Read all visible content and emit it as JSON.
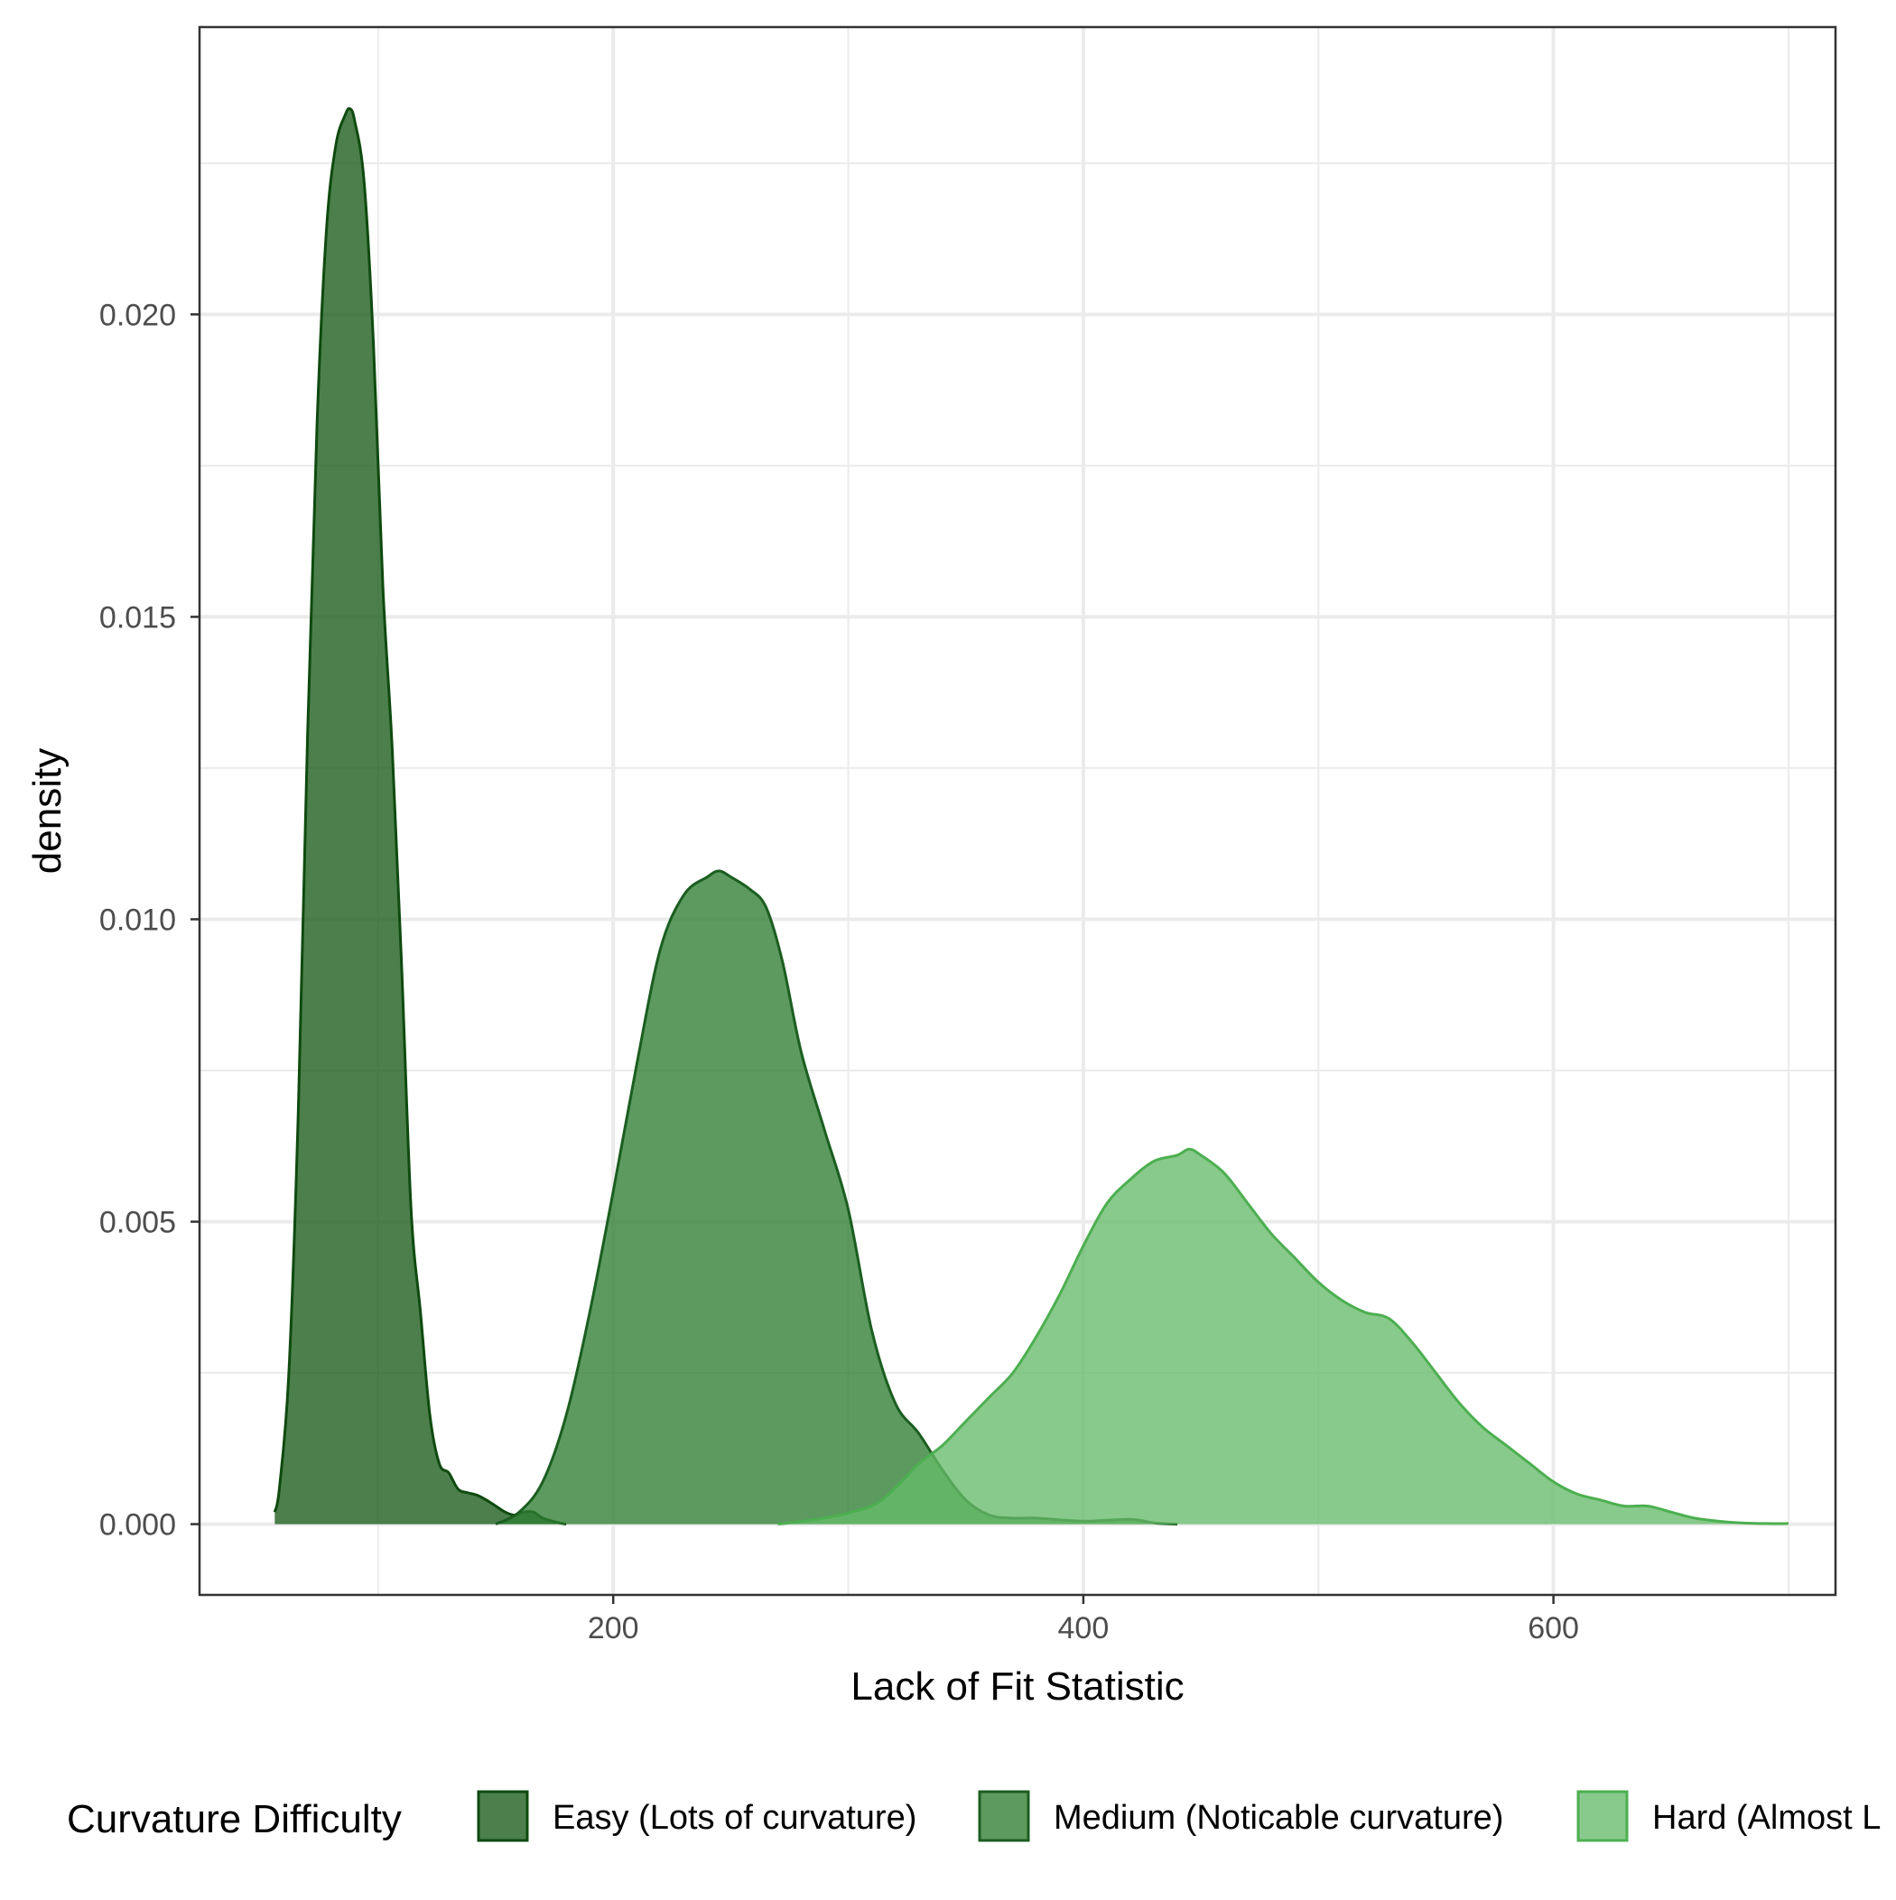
{
  "chart_data": {
    "type": "area",
    "title": "",
    "xlabel": "Lack of Fit Statistic",
    "ylabel": "density",
    "xlim": [
      24,
      720
    ],
    "ylim": [
      -0.00117,
      0.02475
    ],
    "x_ticks": [
      200,
      400,
      600
    ],
    "x_tick_labels": [
      "200",
      "400",
      "600"
    ],
    "y_ticks": [
      0,
      0.005,
      0.01,
      0.015,
      0.02
    ],
    "y_tick_labels": [
      "0.000",
      "0.005",
      "0.010",
      "0.015",
      "0.020"
    ],
    "grid": true,
    "legend": {
      "title": "Curvature Difficulty",
      "position": "bottom"
    },
    "series": [
      {
        "name": "Easy (Lots of curvature)",
        "fill": "#1f5f1f",
        "stroke": "#0f4a0f",
        "opacity": 0.8,
        "x": [
          56,
          58,
          62,
          66,
          70,
          74,
          78,
          82,
          86,
          88,
          90,
          94,
          98,
          102,
          106,
          110,
          114,
          118,
          122,
          126,
          130,
          134,
          138,
          142,
          146,
          150,
          154,
          158,
          162,
          166,
          170,
          176,
          180
        ],
        "y": [
          0.0002,
          0.0006,
          0.0025,
          0.0068,
          0.0131,
          0.0182,
          0.0214,
          0.0228,
          0.0233,
          0.0234,
          0.0232,
          0.0222,
          0.0195,
          0.0155,
          0.0128,
          0.0092,
          0.0052,
          0.0035,
          0.0018,
          0.001,
          0.00085,
          0.00058,
          0.00052,
          0.00048,
          0.0004,
          0.0003,
          0.0002,
          0.00015,
          0.0002,
          0.0002,
          0.0001,
          3e-05,
          0.0
        ]
      },
      {
        "name": "Medium (Noticable curvature)",
        "fill": "#2e7d32",
        "stroke": "#1b5e20",
        "opacity": 0.78,
        "x": [
          150,
          160,
          170,
          180,
          190,
          200,
          210,
          220,
          230,
          240,
          245,
          250,
          258,
          265,
          272,
          280,
          290,
          300,
          310,
          320,
          330,
          340,
          350,
          360,
          370,
          380,
          400,
          420,
          430,
          440
        ],
        "y": [
          0.0,
          0.0002,
          0.0007,
          0.0018,
          0.0035,
          0.0055,
          0.0076,
          0.0095,
          0.0104,
          0.0107,
          0.0108,
          0.0107,
          0.0105,
          0.0102,
          0.0093,
          0.0078,
          0.0065,
          0.0052,
          0.0032,
          0.002,
          0.0015,
          0.0009,
          0.0004,
          0.00015,
          0.0001,
          0.0001,
          5e-05,
          8e-05,
          2e-05,
          0.0
        ]
      },
      {
        "name": "Hard (Almost L",
        "fill": "#66bb6a",
        "stroke": "#4caf50",
        "opacity": 0.78,
        "x": [
          270,
          290,
          310,
          320,
          330,
          340,
          350,
          360,
          370,
          380,
          390,
          400,
          410,
          420,
          430,
          440,
          445,
          450,
          460,
          470,
          480,
          490,
          500,
          510,
          520,
          530,
          540,
          550,
          560,
          570,
          580,
          590,
          600,
          610,
          620,
          630,
          640,
          650,
          660,
          670,
          680,
          690,
          700
        ],
        "y": [
          0.0,
          0.0001,
          0.0003,
          0.0006,
          0.001,
          0.0013,
          0.0017,
          0.0021,
          0.0025,
          0.0031,
          0.0038,
          0.0046,
          0.0053,
          0.0057,
          0.006,
          0.0061,
          0.0062,
          0.0061,
          0.0058,
          0.0053,
          0.0048,
          0.0044,
          0.004,
          0.0037,
          0.0035,
          0.0034,
          0.003,
          0.0025,
          0.002,
          0.0016,
          0.0013,
          0.001,
          0.0007,
          0.0005,
          0.0004,
          0.0003,
          0.0003,
          0.0002,
          0.0001,
          5e-05,
          2e-05,
          1e-05,
          1e-05
        ]
      }
    ]
  }
}
